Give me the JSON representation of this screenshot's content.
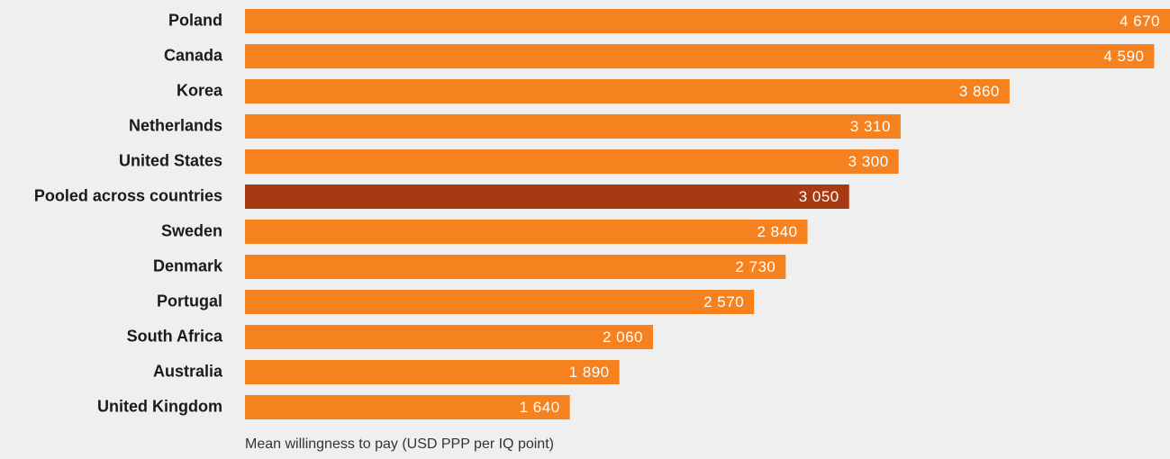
{
  "chart_data": {
    "type": "hbar",
    "x_label": "Mean willingness to pay (USD PPP per IQ point)",
    "categories": [
      "Poland",
      "Canada",
      "Korea",
      "Netherlands",
      "United States",
      "Pooled across countries",
      "Sweden",
      "Denmark",
      "Portugal",
      "South Africa",
      "Australia",
      "United Kingdom"
    ],
    "values": [
      4670,
      4590,
      3860,
      3310,
      3300,
      3050,
      2840,
      2730,
      2570,
      2060,
      1890,
      1640
    ],
    "value_labels": [
      "4 670",
      "4 590",
      "3 860",
      "3 310",
      "3 300",
      "3 050",
      "2 840",
      "2 730",
      "2 570",
      "2 060",
      "1 890",
      "1 640"
    ],
    "colors": [
      "#f5821f",
      "#f5821f",
      "#f5821f",
      "#f5821f",
      "#f5821f",
      "#a63a12",
      "#f5821f",
      "#f5821f",
      "#f5821f",
      "#f5821f",
      "#f5821f",
      "#f5821f"
    ],
    "xlim": [
      0,
      4670
    ]
  }
}
